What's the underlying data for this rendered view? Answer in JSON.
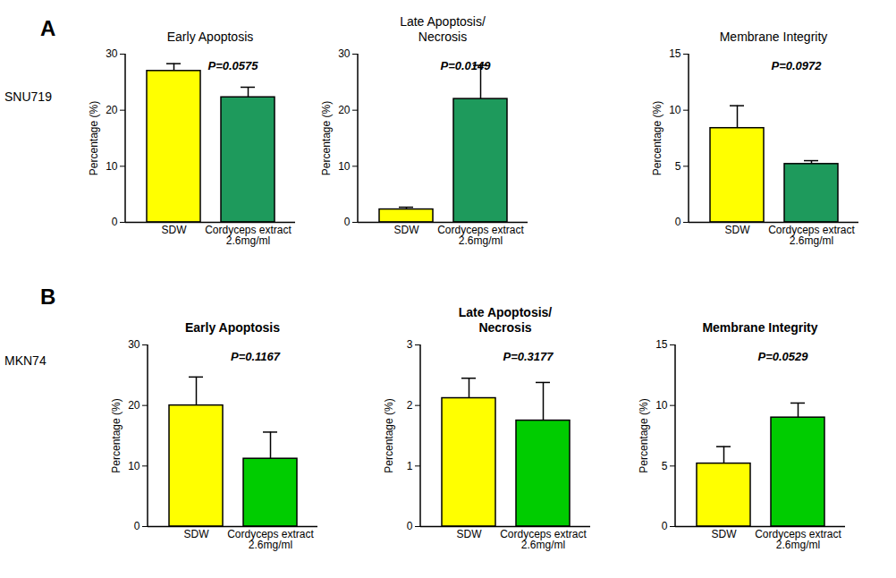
{
  "rows": [
    {
      "letter": "A",
      "label": "SNU719"
    },
    {
      "letter": "B",
      "label": "MKN74"
    }
  ],
  "chart_data": [
    {
      "type": "bar",
      "title": "Early Apoptosis",
      "ylabel": "Percentage (%)",
      "categories": [
        "SDW",
        "Cordyceps extract\n2.6mg/ml"
      ],
      "values": [
        27,
        22.3
      ],
      "errors": [
        1.3,
        1.8
      ],
      "colors": [
        "#ffff00",
        "#1e9a5c"
      ],
      "ylim": [
        0,
        30
      ],
      "yticks": [
        0,
        10,
        20,
        30
      ],
      "annotations": [
        "P=0.0575"
      ]
    },
    {
      "type": "bar",
      "title": "Late Apoptosis/\nNecrosis",
      "ylabel": "Percentage (%)",
      "categories": [
        "SDW",
        "Cordyceps extract\n2.6mg/ml"
      ],
      "values": [
        2.3,
        22
      ],
      "errors": [
        0.4,
        6
      ],
      "colors": [
        "#ffff00",
        "#1e9a5c"
      ],
      "ylim": [
        0,
        30
      ],
      "yticks": [
        0,
        10,
        20,
        30
      ],
      "annotations": [
        "P=0.0149"
      ]
    },
    {
      "type": "bar",
      "title": "Membrane Integrity",
      "ylabel": "Percentage (%)",
      "categories": [
        "SDW",
        "Cordyceps extract\n2.6mg/ml"
      ],
      "values": [
        8.4,
        5.2
      ],
      "errors": [
        2,
        0.3
      ],
      "colors": [
        "#ffff00",
        "#1e9a5c"
      ],
      "ylim": [
        0,
        15
      ],
      "yticks": [
        0,
        5,
        10,
        15
      ],
      "annotations": [
        "P=0.0972"
      ]
    },
    {
      "type": "bar",
      "title": "Early Apoptosis",
      "ylabel": "Percentage (%)",
      "categories": [
        "SDW",
        "Cordyceps extract\n2.6mg/ml"
      ],
      "values": [
        20,
        11.2
      ],
      "errors": [
        4.7,
        4.4
      ],
      "colors": [
        "#ffff00",
        "#00cc00"
      ],
      "ylim": [
        0,
        30
      ],
      "yticks": [
        0,
        10,
        20,
        30
      ],
      "annotations": [
        "P=0.1167"
      ]
    },
    {
      "type": "bar",
      "title": "Late Apoptosis/\nNecrosis",
      "ylabel": "Percentage (%)",
      "categories": [
        "SDW",
        "Cordyceps extract\n2.6mg/ml"
      ],
      "values": [
        2.12,
        1.75
      ],
      "errors": [
        0.33,
        0.63
      ],
      "colors": [
        "#ffff00",
        "#00cc00"
      ],
      "ylim": [
        0,
        3
      ],
      "yticks": [
        0,
        1,
        2,
        3
      ],
      "annotations": [
        "P=0.3177"
      ]
    },
    {
      "type": "bar",
      "title": "Membrane Integrity",
      "ylabel": "Percentage (%)",
      "categories": [
        "SDW",
        "Cordyceps extract\n2.6mg/ml"
      ],
      "values": [
        5.2,
        9
      ],
      "errors": [
        1.4,
        1.2
      ],
      "colors": [
        "#ffff00",
        "#00cc00"
      ],
      "ylim": [
        0,
        15
      ],
      "yticks": [
        0,
        5,
        10,
        15
      ],
      "annotations": [
        "P=0.0529"
      ]
    }
  ]
}
